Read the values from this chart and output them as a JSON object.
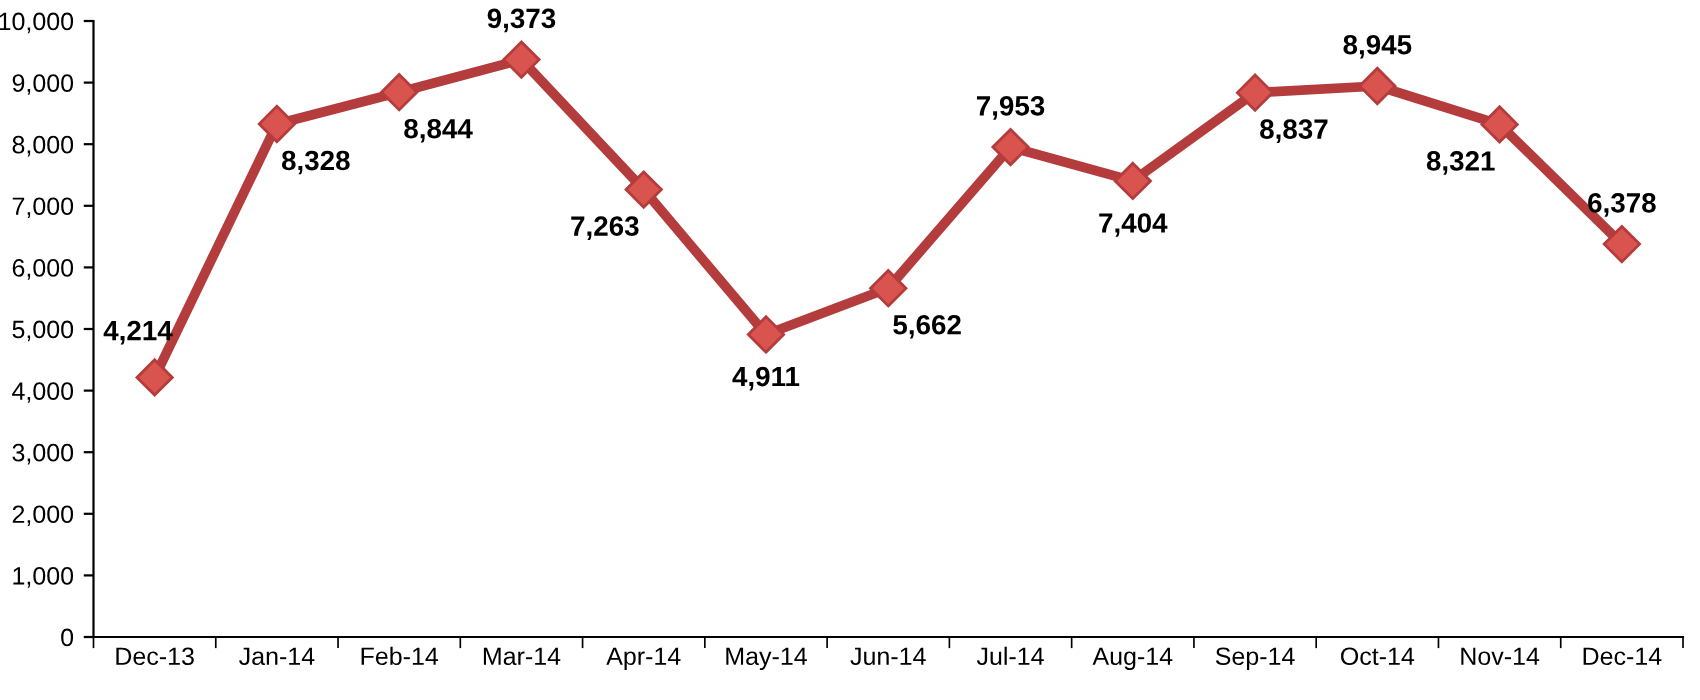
{
  "chart_data": {
    "type": "line",
    "categories": [
      "Dec-13",
      "Jan-14",
      "Feb-14",
      "Mar-14",
      "Apr-14",
      "May-14",
      "Jun-14",
      "Jul-14",
      "Aug-14",
      "Sep-14",
      "Oct-14",
      "Nov-14",
      "Dec-14"
    ],
    "series": [
      {
        "color": "#b43c3c",
        "values": [
          4214,
          8328,
          8844,
          9373,
          7263,
          4911,
          5662,
          7953,
          7404,
          8837,
          8945,
          8321,
          6378
        ],
        "value_labels": [
          "4,214",
          "8,328",
          "8,844",
          "9,373",
          "7,263",
          "4,911",
          "5,662",
          "7,953",
          "7,404",
          "8,837",
          "8,945",
          "8,321",
          "6,378"
        ]
      }
    ],
    "ylim": [
      0,
      10000
    ],
    "yticks": [
      {
        "value": 0,
        "label": "0"
      },
      {
        "value": 1000,
        "label": "1,000"
      },
      {
        "value": 2000,
        "label": "2,000"
      },
      {
        "value": 3000,
        "label": "3,000"
      },
      {
        "value": 4000,
        "label": "4,000"
      },
      {
        "value": 5000,
        "label": "5,000"
      },
      {
        "value": 6000,
        "label": "6,000"
      },
      {
        "value": 7000,
        "label": "7,000"
      },
      {
        "value": 8000,
        "label": "8,000"
      },
      {
        "value": 9000,
        "label": "9,000"
      },
      {
        "value": 10000,
        "label": "10,000"
      }
    ],
    "marker": "diamond",
    "line_style": "solid",
    "grid": false,
    "legend": false
  }
}
